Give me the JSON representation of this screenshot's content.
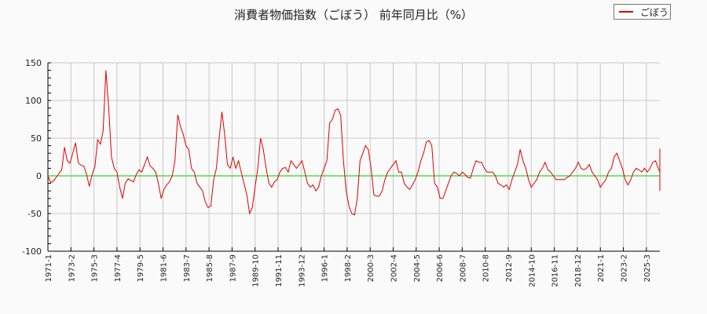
{
  "title": "消費者物価指数（ごぼう） 前年同月比（%）",
  "legend": {
    "label": "ごぼう",
    "color": "#e00000"
  },
  "colors": {
    "series": "#e00000",
    "zero_line": "#00cc00",
    "grid": "#c8c8c8",
    "background": "#fafafa",
    "axis": "#000000"
  },
  "chart_data": {
    "type": "line",
    "title": "消費者物価指数（ごぼう） 前年同月比（%）",
    "xlabel": "",
    "ylabel": "",
    "ylim": [
      -100,
      150
    ],
    "yticks": [
      150,
      100,
      50,
      0,
      -50,
      -100
    ],
    "grid": true,
    "legend_position": "top-right",
    "x_tick_labels": [
      "1971-1",
      "1973-2",
      "1975-3",
      "1977-4",
      "1979-5",
      "1981-6",
      "1983-7",
      "1985-8",
      "1987-9",
      "1989-10",
      "1991-11",
      "1993-12",
      "1996-1",
      "1998-2",
      "2000-3",
      "2002-4",
      "2004-5",
      "2006-6",
      "2008-7",
      "2010-8",
      "2012-9",
      "2014-10",
      "2016-11",
      "2018-12",
      "2021-1",
      "2023-2",
      "2025-3"
    ],
    "series": [
      {
        "name": "ごぼう",
        "x_start": "1971-1",
        "x_step_months": 3,
        "values": [
          0,
          -9,
          -7,
          -2,
          3,
          8,
          38,
          20,
          17,
          30,
          44,
          17,
          14,
          13,
          2,
          -14,
          2,
          12,
          48,
          42,
          60,
          140,
          90,
          25,
          10,
          5,
          -15,
          -30,
          -10,
          -4,
          -6,
          -8,
          2,
          8,
          5,
          15,
          25,
          13,
          10,
          5,
          -10,
          -30,
          -18,
          -12,
          -8,
          0,
          20,
          81,
          65,
          55,
          40,
          35,
          10,
          5,
          -10,
          -15,
          -20,
          -35,
          -42,
          -40,
          -5,
          10,
          50,
          85,
          55,
          15,
          10,
          25,
          10,
          20,
          5,
          -10,
          -25,
          -50,
          -42,
          -15,
          10,
          50,
          35,
          10,
          -10,
          -15,
          -8,
          -5,
          5,
          10,
          11,
          5,
          20,
          15,
          10,
          15,
          20,
          5,
          -10,
          -15,
          -12,
          -20,
          -15,
          0,
          10,
          20,
          70,
          75,
          87,
          89,
          80,
          20,
          -20,
          -40,
          -50,
          -52,
          -30,
          20,
          30,
          40,
          35,
          10,
          -25,
          -27,
          -27,
          -20,
          -5,
          5,
          10,
          15,
          20,
          5,
          5,
          -10,
          -15,
          -18,
          -12,
          -5,
          5,
          20,
          30,
          45,
          47,
          40,
          -10,
          -15,
          -30,
          -30,
          -20,
          -10,
          0,
          5,
          3,
          0,
          5,
          2,
          -2,
          -3,
          10,
          20,
          18,
          18,
          10,
          5,
          5,
          5,
          0,
          -10,
          -12,
          -15,
          -12,
          -18,
          -5,
          5,
          15,
          35,
          20,
          10,
          -5,
          -15,
          -10,
          -5,
          5,
          10,
          18,
          8,
          5,
          0,
          -5,
          -5,
          -5,
          -5,
          -2,
          0,
          5,
          10,
          18,
          10,
          8,
          10,
          15,
          5,
          0,
          -5,
          -15,
          -10,
          -5,
          5,
          10,
          25,
          30,
          20,
          10,
          -5,
          -12,
          -5,
          5,
          10,
          8,
          5,
          10,
          5,
          10,
          18,
          20,
          10,
          5,
          0,
          -10,
          -15,
          -10,
          5,
          10,
          12,
          5,
          0,
          -5,
          -10,
          -10,
          -8,
          -5,
          0,
          10,
          30,
          36,
          15,
          5,
          -10,
          -20,
          -15,
          -5,
          5,
          8,
          8,
          10,
          5,
          0,
          2,
          -2,
          2,
          5,
          20,
          28,
          25,
          18,
          5
        ]
      }
    ]
  }
}
